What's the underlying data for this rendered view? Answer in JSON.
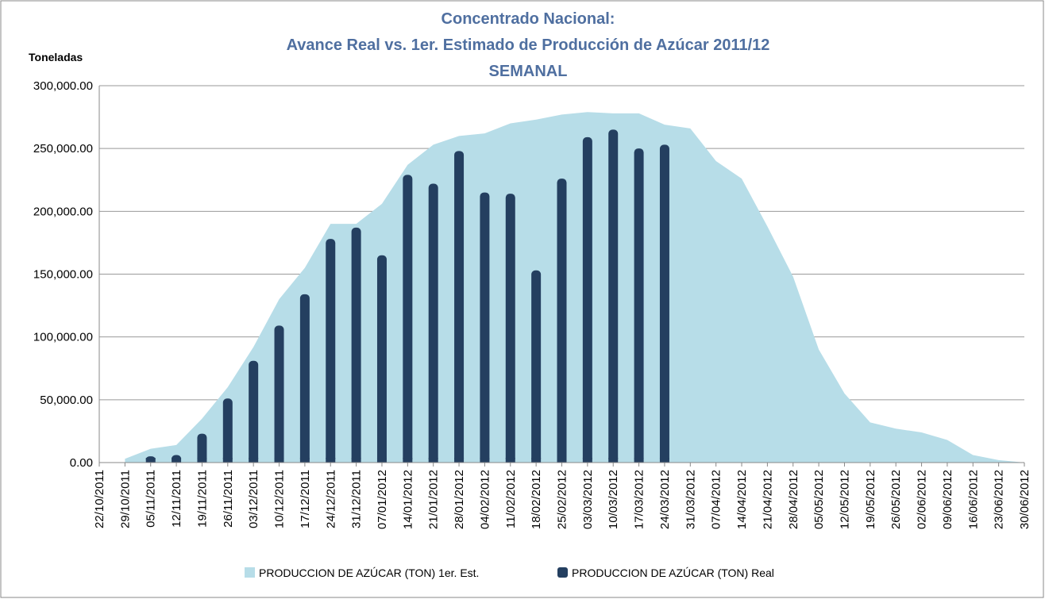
{
  "chart_data": {
    "type": "area-bar",
    "title": [
      "Concentrado Nacional:",
      "Avance Real vs. 1er. Estimado de Producción de Azúcar 2011/12",
      "SEMANAL"
    ],
    "y_label": "Toneladas",
    "categories": [
      "22/10/2011",
      "29/10/2011",
      "05/11/2011",
      "12/11/2011",
      "19/11/2011",
      "26/11/2011",
      "03/12/2011",
      "10/12/2011",
      "17/12/2011",
      "24/12/2011",
      "31/12/2011",
      "07/01/2012",
      "14/01/2012",
      "21/01/2012",
      "28/01/2012",
      "04/02/2012",
      "11/02/2012",
      "18/02/2012",
      "25/02/2012",
      "03/03/2012",
      "10/03/2012",
      "17/03/2012",
      "24/03/2012",
      "31/03/2012",
      "07/04/2012",
      "14/04/2012",
      "21/04/2012",
      "28/04/2012",
      "05/05/2012",
      "12/05/2012",
      "19/05/2012",
      "26/05/2012",
      "02/06/2012",
      "09/06/2012",
      "16/06/2012",
      "23/06/2012",
      "30/06/2012"
    ],
    "series": [
      {
        "name": "PRODUCCION DE AZÚCAR (TON) 1er. Est.",
        "color": "#b7dde8",
        "kind": "area",
        "values": [
          null,
          3000,
          11000,
          14000,
          35000,
          60000,
          92000,
          130000,
          155000,
          190000,
          190000,
          206000,
          237000,
          253000,
          260000,
          262000,
          270000,
          273000,
          277000,
          279000,
          278000,
          278000,
          269000,
          266000,
          240000,
          226000,
          188000,
          148000,
          90000,
          55000,
          32000,
          27000,
          24000,
          18000,
          6000,
          2000,
          0
        ]
      },
      {
        "name": "PRODUCCION DE AZÚCAR (TON) Real",
        "color": "#243f60",
        "kind": "bar",
        "values": [
          null,
          null,
          5000,
          6000,
          23000,
          51000,
          81000,
          109000,
          134000,
          178000,
          187000,
          165000,
          229000,
          222000,
          248000,
          215000,
          214000,
          153000,
          226000,
          259000,
          265000,
          250000,
          253000,
          null,
          null,
          null,
          null,
          null,
          null,
          null,
          null,
          null,
          null,
          null,
          null,
          null,
          null
        ]
      }
    ],
    "ylim": [
      0,
      300000
    ],
    "yticks": [
      {
        "value": 0,
        "label": "0.00"
      },
      {
        "value": 50000,
        "label": "50,000.00"
      },
      {
        "value": 100000,
        "label": "100,000.00"
      },
      {
        "value": 150000,
        "label": "150,000.00"
      },
      {
        "value": 200000,
        "label": "200,000.00"
      },
      {
        "value": 250000,
        "label": "250,000.00"
      },
      {
        "value": 300000,
        "label": "300,000.00"
      }
    ],
    "grid": true,
    "legend": "bottom"
  }
}
